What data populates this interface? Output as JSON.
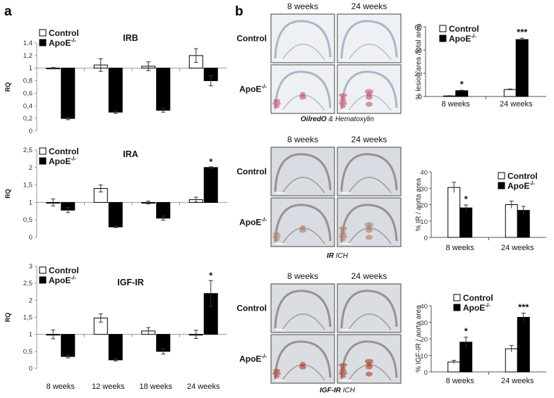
{
  "panels": {
    "a_label": "a",
    "b_label": "b"
  },
  "legend": {
    "control": "Control",
    "apoe": "ApoE",
    "apoe_sup": "-/-"
  },
  "panel_a": {
    "ylabel": "RQ",
    "categories": [
      "8 weeks",
      "12 weeks",
      "18 weeks",
      "24 weeks"
    ]
  },
  "panel_b": {
    "columns": [
      "8 weeks",
      "24 weeks"
    ],
    "rows": [
      "Control",
      "ApoE"
    ],
    "row_sup": "-/-",
    "captions": [
      {
        "bold": "OilredO",
        "rest": " & Hematoxylin"
      },
      {
        "bold": "IR",
        "rest": " ICH"
      },
      {
        "bold": "IGF-IR",
        "rest": " ICH"
      }
    ]
  },
  "chart_data": [
    {
      "type": "bar",
      "panel": "a",
      "title": "IRB",
      "ylabel": "RQ",
      "categories": [
        "8 weeks",
        "12 weeks",
        "18 weeks",
        "24 weeks"
      ],
      "baseline": 1,
      "ylim": [
        0,
        1.4
      ],
      "yticks": [
        "0",
        "0,2",
        "0,4",
        "0,6",
        "0,8",
        "1",
        "1,2",
        "1,4"
      ],
      "series": [
        {
          "name": "Control",
          "values": [
            1.0,
            1.05,
            1.03,
            1.2
          ],
          "errors": [
            0.01,
            0.1,
            0.07,
            0.11
          ]
        },
        {
          "name": "ApoE-/-",
          "values": [
            0.2,
            0.3,
            0.33,
            0.8
          ],
          "errors": [
            0.02,
            0.02,
            0.03,
            0.08
          ]
        }
      ],
      "annotations": []
    },
    {
      "type": "bar",
      "panel": "a",
      "title": "IRA",
      "ylabel": "RQ",
      "categories": [
        "8 weeks",
        "12 weeks",
        "18 weeks",
        "24 weeks"
      ],
      "baseline": 1,
      "ylim": [
        0,
        2.5
      ],
      "yticks": [
        "0",
        "0,5",
        "1",
        "1,5",
        "2",
        "2,5"
      ],
      "series": [
        {
          "name": "Control",
          "values": [
            1.0,
            1.4,
            1.0,
            1.08
          ],
          "errors": [
            0.1,
            0.1,
            0.04,
            0.07
          ]
        },
        {
          "name": "ApoE-/-",
          "values": [
            0.78,
            0.3,
            0.55,
            2.0
          ],
          "errors": [
            0.07,
            0.02,
            0.06,
            0.02
          ]
        }
      ],
      "annotations": [
        "",
        "",
        "",
        "*"
      ]
    },
    {
      "type": "bar",
      "panel": "a",
      "title": "IGF-IR",
      "ylabel": "RQ",
      "categories": [
        "8 weeks",
        "12 weeks",
        "18 weeks",
        "24 weeks"
      ],
      "baseline": 1,
      "ylim": [
        0,
        3
      ],
      "yticks": [
        "0",
        "0,5",
        "1",
        "1,5",
        "2",
        "2,5",
        "3"
      ],
      "series": [
        {
          "name": "Control",
          "values": [
            1.0,
            1.48,
            1.1,
            1.0
          ],
          "errors": [
            0.13,
            0.12,
            0.1,
            0.12
          ]
        },
        {
          "name": "ApoE-/-",
          "values": [
            0.35,
            0.25,
            0.5,
            2.2
          ],
          "errors": [
            0.04,
            0.03,
            0.08,
            0.38
          ]
        }
      ],
      "annotations": [
        "",
        "",
        "",
        "*"
      ]
    },
    {
      "type": "bar",
      "panel": "b",
      "ylabel": "% lesion area /total area",
      "categories": [
        "8 weeks",
        "24 weeks"
      ],
      "ylim": [
        0,
        60
      ],
      "yticks": [
        "0",
        "20",
        "40",
        "60"
      ],
      "series": [
        {
          "name": "Control",
          "values": [
            0.5,
            6
          ],
          "errors": [
            0.2,
            0.5
          ]
        },
        {
          "name": "ApoE-/-",
          "values": [
            5,
            49
          ],
          "errors": [
            0.4,
            1.2
          ]
        }
      ],
      "annotations": [
        "*",
        "***"
      ]
    },
    {
      "type": "bar",
      "panel": "b",
      "ylabel": "% IR / aorta area",
      "categories": [
        "8 weeks",
        "24 weeks"
      ],
      "ylim": [
        0,
        40
      ],
      "yticks": [
        "0",
        "10",
        "20",
        "30",
        "40"
      ],
      "series": [
        {
          "name": "Control",
          "values": [
            30.5,
            20
          ],
          "errors": [
            3.2,
            2.2
          ]
        },
        {
          "name": "ApoE-/-",
          "values": [
            18,
            16.5
          ],
          "errors": [
            1.8,
            2.5
          ]
        }
      ],
      "annotations": [
        "*",
        ""
      ]
    },
    {
      "type": "bar",
      "panel": "b",
      "ylabel": "% IGF-IR / aorta area",
      "categories": [
        "8 weeks",
        "24 weeks"
      ],
      "ylim": [
        0,
        40
      ],
      "yticks": [
        "0",
        "10",
        "20",
        "30",
        "40"
      ],
      "series": [
        {
          "name": "Control",
          "values": [
            6,
            14
          ],
          "errors": [
            1,
            2
          ]
        },
        {
          "name": "ApoE-/-",
          "values": [
            18,
            33
          ],
          "errors": [
            3,
            2.5
          ]
        }
      ],
      "annotations": [
        "*",
        "***"
      ]
    }
  ]
}
